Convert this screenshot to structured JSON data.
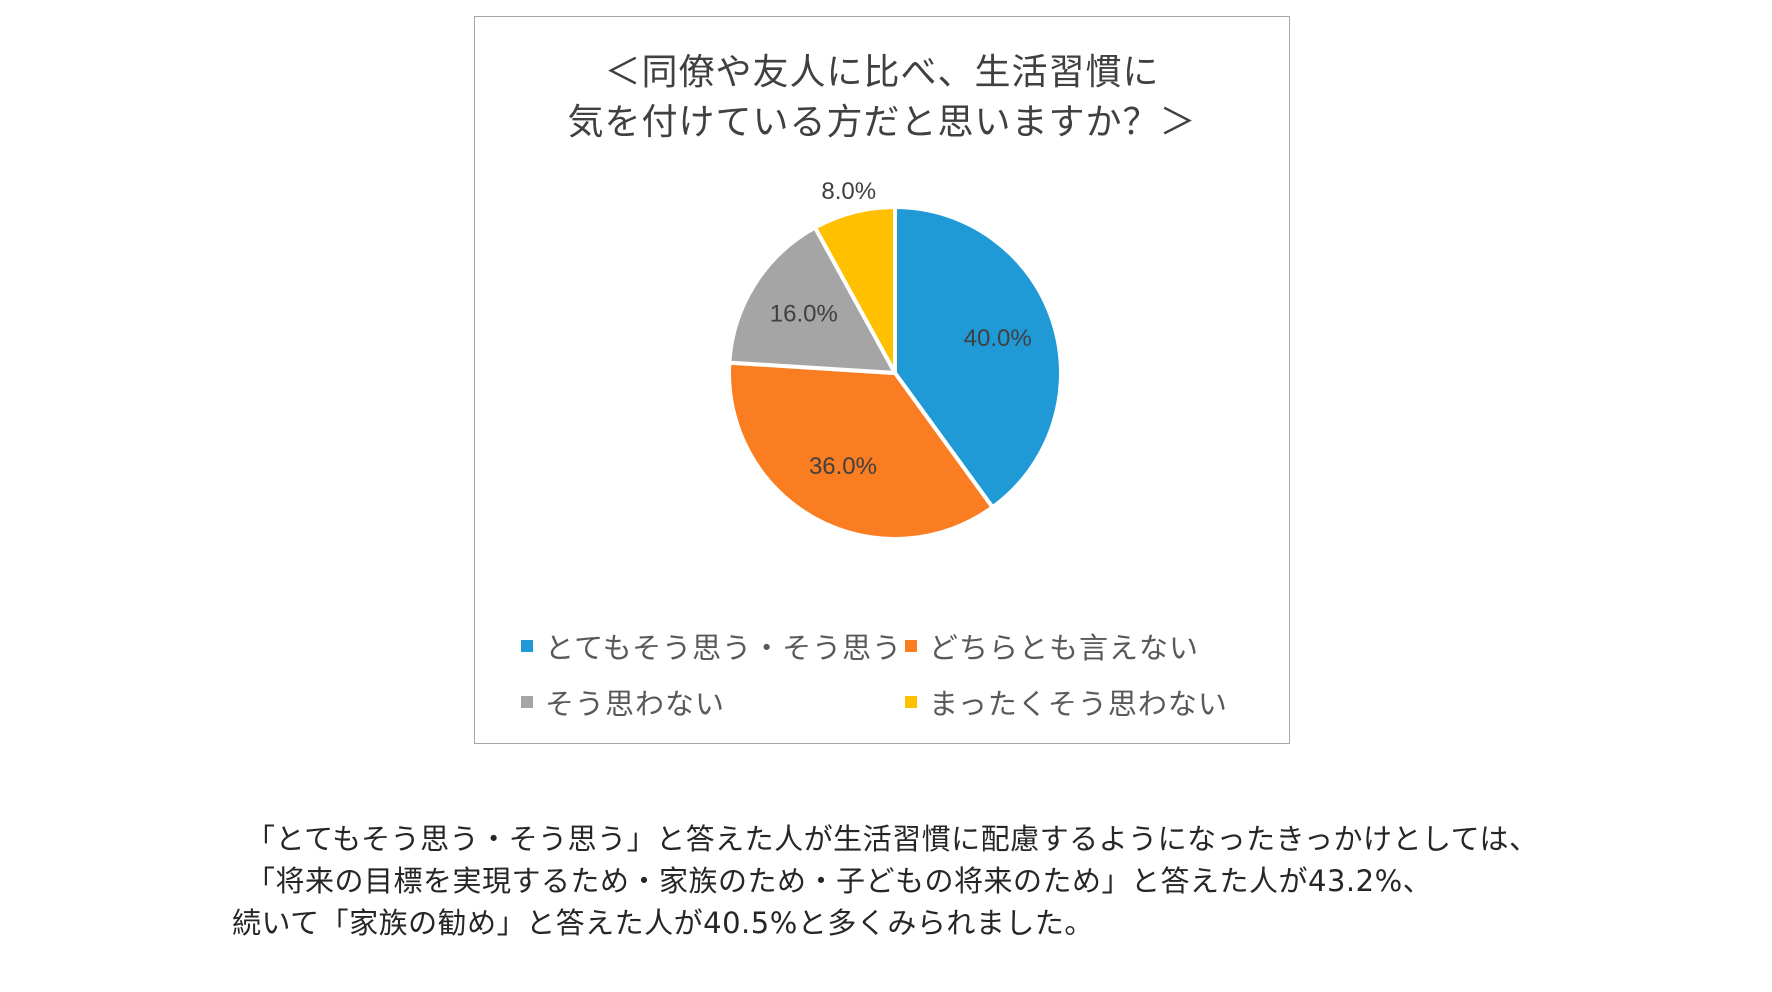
{
  "chart_data": {
    "type": "pie",
    "title_lines": [
      "＜同僚や友人に比べ、生活習慣に",
      "気を付けている方だと思いますか？＞"
    ],
    "categories": [
      "とてもそう思う・そう思う",
      "どちらとも言えない",
      "そう思わない",
      "まったくそう思わない"
    ],
    "values": [
      40.0,
      36.0,
      16.0,
      8.0
    ],
    "data_labels": [
      "40.0%",
      "36.0%",
      "16.0%",
      "8.0%"
    ],
    "colors": [
      "#1f9ad6",
      "#fb7d22",
      "#a5a5a5",
      "#ffc000"
    ],
    "legend_position": "bottom"
  },
  "caption": {
    "line1": "「とてもそう思う・そう思う」と答えた人が生活習慣に配慮するようになったきっかけとしては、",
    "line2": "「将来の目標を実現するため・家族のため・子どもの将来のため」と答えた人が43.2%、",
    "line3": "続いて「家族の勧め」と答えた人が40.5%と多くみられました。"
  }
}
